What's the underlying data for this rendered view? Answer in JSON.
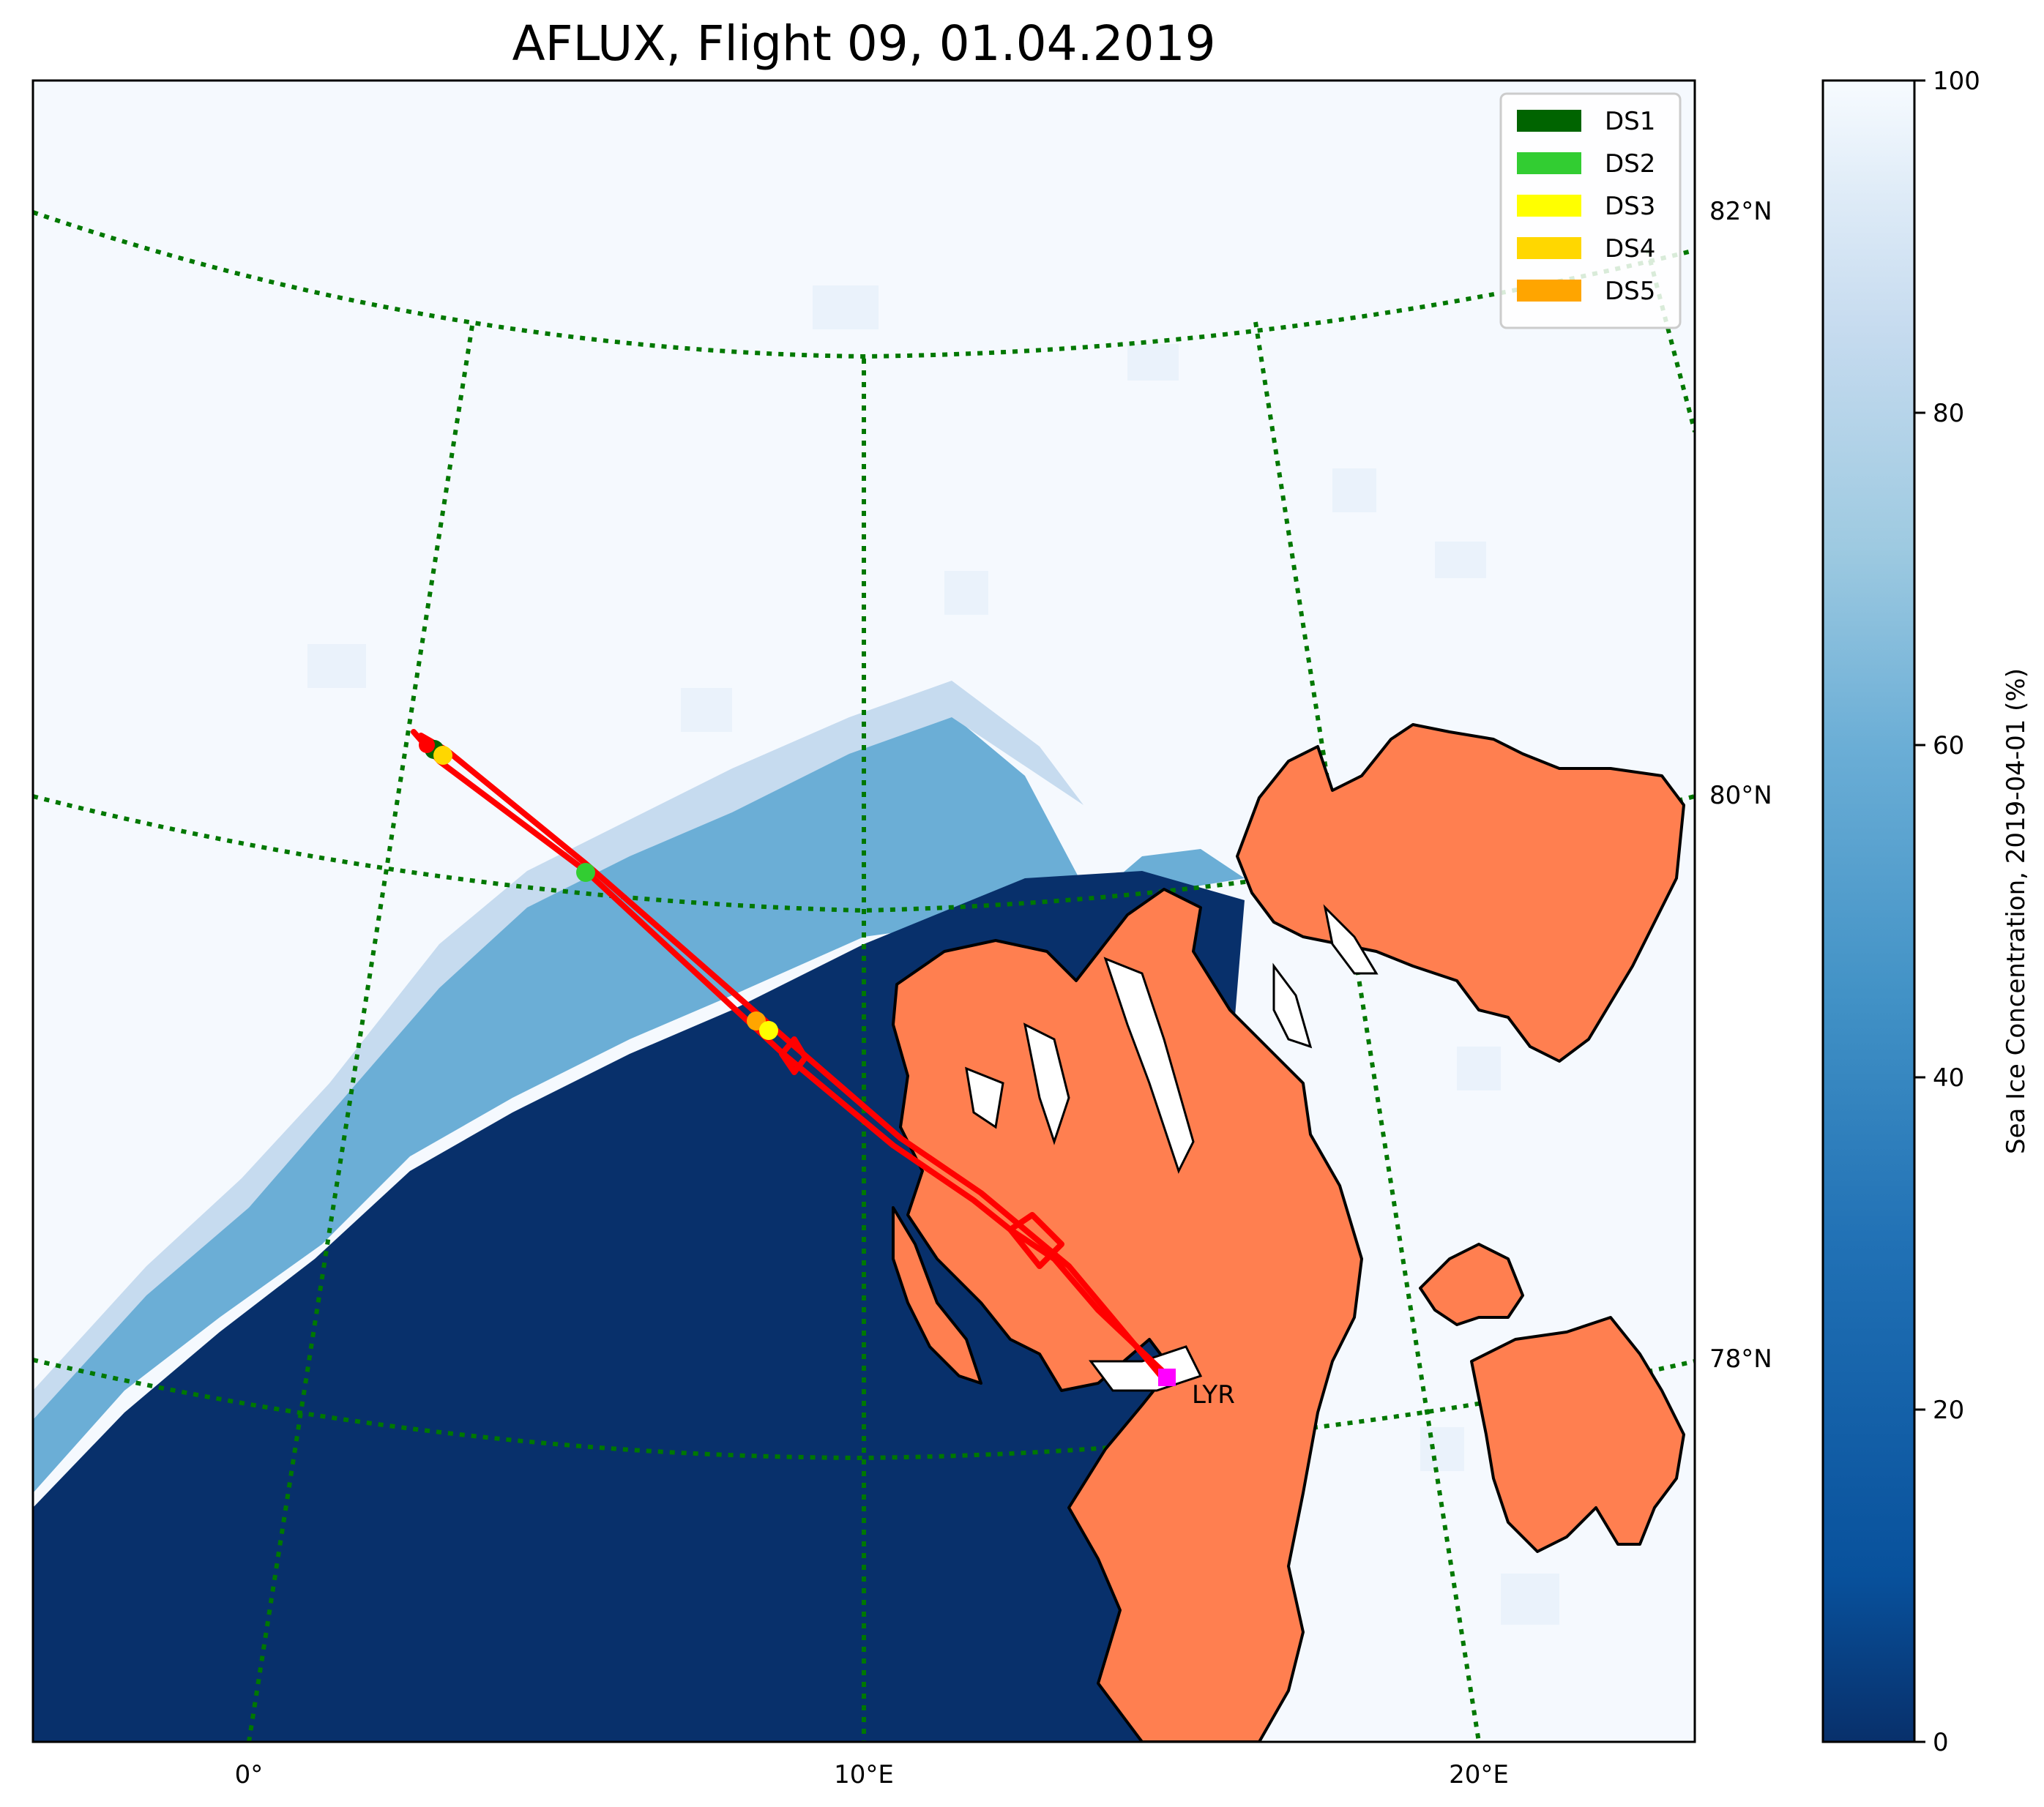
{
  "title": "AFLUX, Flight 09, 01.04.2019",
  "map": {
    "lat_labels": [
      "82°N",
      "80°N",
      "78°N"
    ],
    "lon_labels": [
      "0°",
      "10°E",
      "20°E"
    ],
    "airport_label": "LYR",
    "colors": {
      "open_water": "#08306b",
      "ice": "#f5f9fe",
      "land": "#ff7f50",
      "graticule": "#007800",
      "track": "#ff0000",
      "airport_marker": "#ff00ff"
    }
  },
  "legend": {
    "entries": [
      {
        "label": "DS1",
        "color": "#006400"
      },
      {
        "label": "DS2",
        "color": "#32cd32"
      },
      {
        "label": "DS3",
        "color": "#ffff00"
      },
      {
        "label": "DS4",
        "color": "#ffd700"
      },
      {
        "label": "DS5",
        "color": "#ffa500"
      }
    ]
  },
  "colorbar": {
    "label": "Sea Ice Concentration, 2019-04-01 (%)",
    "ticks": [
      "0",
      "20",
      "40",
      "60",
      "80",
      "100"
    ],
    "cmap": "Blues_r",
    "range": [
      0,
      100
    ]
  },
  "dropsondes": [
    {
      "id": "DS1",
      "color": "#006400"
    },
    {
      "id": "DS2",
      "color": "#32cd32"
    },
    {
      "id": "DS3",
      "color": "#ffff00"
    },
    {
      "id": "DS4",
      "color": "#ffd700"
    },
    {
      "id": "DS5",
      "color": "#ffa500"
    }
  ]
}
